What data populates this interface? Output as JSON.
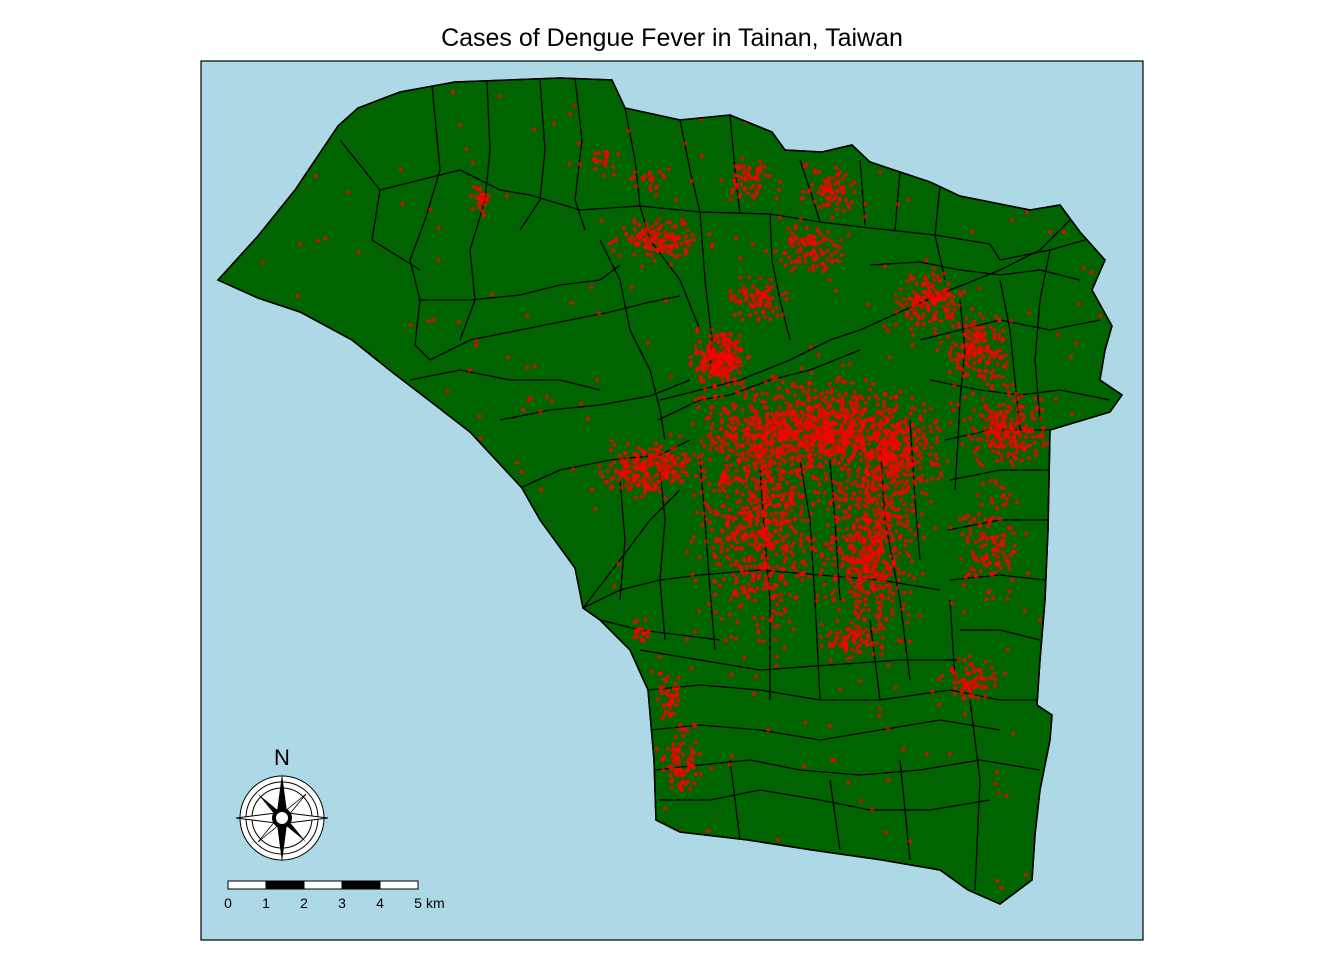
{
  "title": "Cases of Dengue Fever in Tainan, Taiwan",
  "colors": {
    "water": "#add8e6",
    "land": "#006400",
    "border": "#000000",
    "cases": "#ff0000"
  },
  "north_arrow": {
    "label": "N",
    "icon": "compass-rose-icon"
  },
  "scale_bar": {
    "ticks": [
      "0",
      "1",
      "2",
      "3",
      "4",
      "5"
    ],
    "unit": "km"
  }
}
